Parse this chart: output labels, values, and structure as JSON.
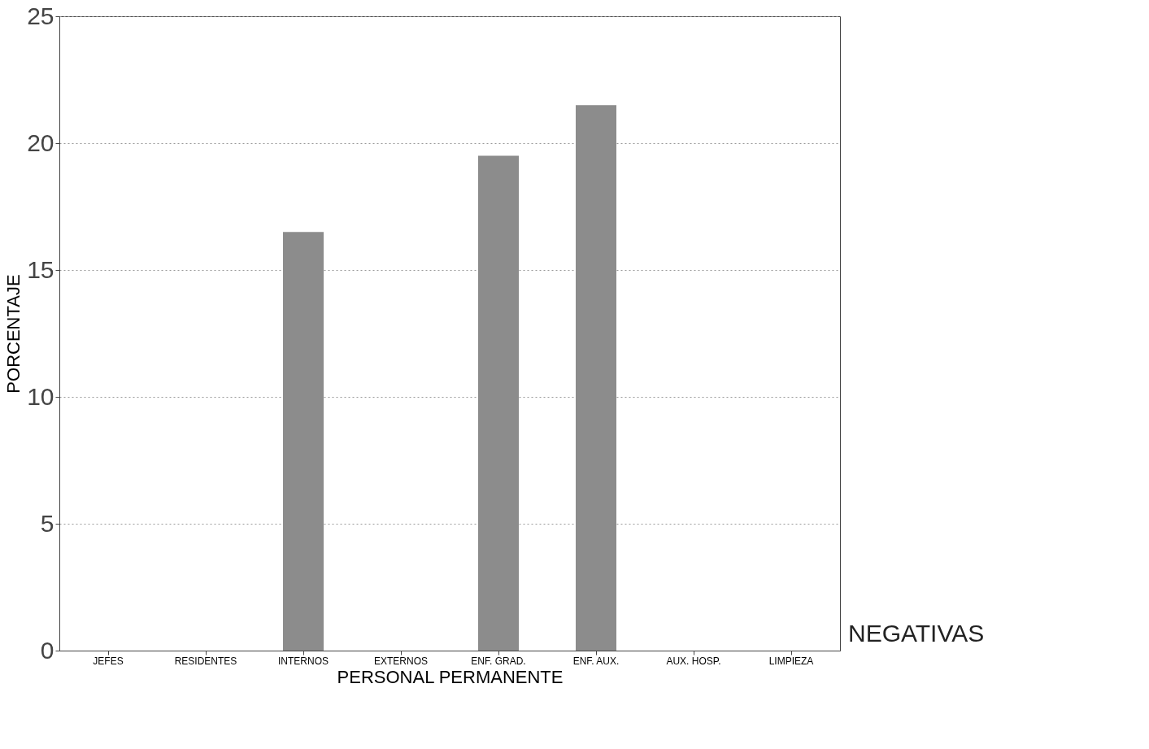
{
  "chart_data": {
    "type": "bar",
    "xlabel": "PERSONAL PERMANENTE",
    "ylabel": "PORCENTAJE",
    "categories": [
      "JEFES",
      "RESIDENTES",
      "INTERNOS",
      "EXTERNOS",
      "ENF. GRAD.",
      "ENF. AUX.",
      "AUX. HOSP.",
      "LIMPIEZA"
    ],
    "series": [
      {
        "name": "NEGATIVAS",
        "color": "#8c8c8c",
        "values": [
          0,
          0,
          16.5,
          0,
          19.5,
          21.5,
          0,
          0
        ]
      }
    ],
    "ylim": [
      0,
      25
    ],
    "yticks": [
      0,
      5,
      10,
      15,
      20,
      25
    ],
    "grid": "y"
  }
}
